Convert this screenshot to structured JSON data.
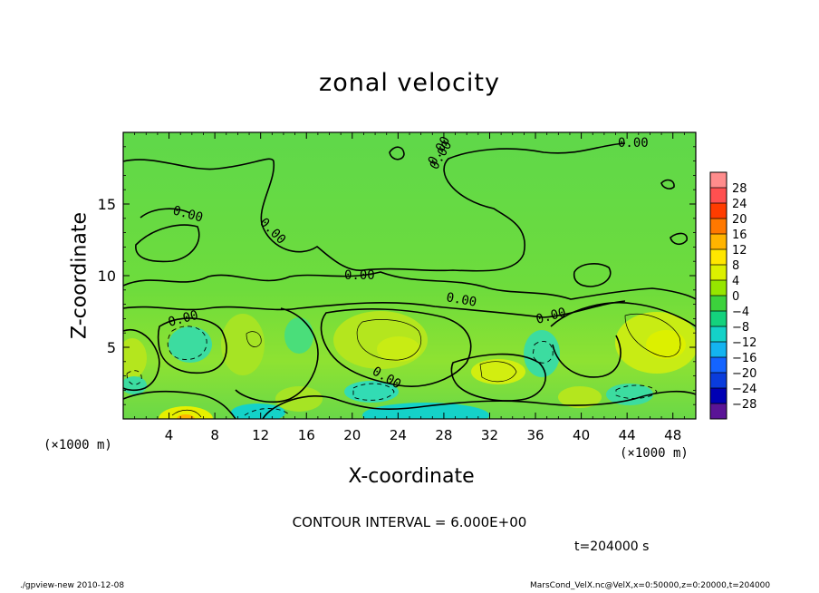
{
  "chart_data": {
    "type": "heatmap",
    "title": "zonal velocity",
    "xlabel": "X-coordinate",
    "ylabel": "Z-coordinate",
    "x_unit_label": "(×1000 m)",
    "x_ticks": [
      4,
      8,
      12,
      16,
      20,
      24,
      28,
      32,
      36,
      40,
      44,
      48
    ],
    "y_ticks": [
      5,
      10,
      15
    ],
    "xlim": [
      0,
      50
    ],
    "ylim": [
      0,
      20
    ],
    "colorbar": {
      "ticks": [
        "28",
        "24",
        "20",
        "16",
        "12",
        "8",
        "4",
        "0",
        "−4",
        "−8",
        "−12",
        "−16",
        "−20",
        "−24",
        "−28"
      ],
      "colors": [
        "#ff8c8c",
        "#ff5050",
        "#ff3c00",
        "#ff7800",
        "#ffb400",
        "#ffe600",
        "#dcf000",
        "#96e600",
        "#3cd23c",
        "#14d27d",
        "#14d2c8",
        "#14b4f0",
        "#1464ff",
        "#0a3cdc",
        "#0000b4",
        "#5a1496"
      ]
    },
    "contour_labels": [
      "0.00",
      "0.00",
      "0.00",
      "0.00",
      "0.00",
      "0.00",
      "0.00",
      "0.00",
      "0.00",
      "0.00"
    ],
    "contour_interval": "CONTOUR INTERVAL = 6.000E+00",
    "time": "t=204000 s"
  },
  "footer": {
    "left": "./gpview-new   2010-12-08",
    "right": "MarsCond_VelX.nc@VelX,x=0:50000,z=0:20000,t=204000"
  }
}
